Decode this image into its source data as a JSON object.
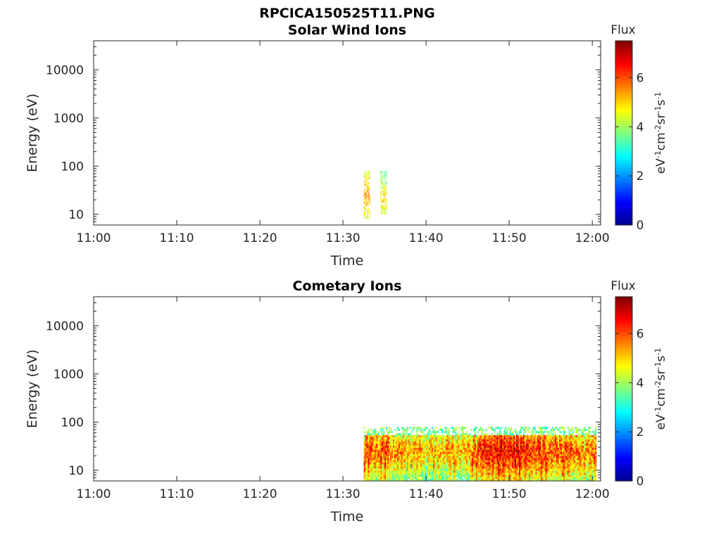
{
  "figure_title": "RPCICA150525T11.PNG",
  "colors": {
    "axis": "#262626",
    "colormap": [
      "#00008f",
      "#0000ff",
      "#0080ff",
      "#00ffff",
      "#80ff80",
      "#ffff00",
      "#ff8000",
      "#ff0000",
      "#800000"
    ]
  },
  "chart_data": [
    {
      "type": "heatmap",
      "title": "Solar Wind Ions",
      "xlabel": "Time",
      "ylabel": "Energy (eV)",
      "yscale": "log",
      "xlim": [
        "11:00",
        "12:01"
      ],
      "ylim": [
        6,
        40000
      ],
      "xticks": [
        "11:00",
        "11:10",
        "11:20",
        "11:30",
        "11:40",
        "11:50",
        "12:00"
      ],
      "yticks": [
        10,
        100,
        1000,
        10000
      ],
      "colorbar": {
        "title": "Flux",
        "label_base": "eV",
        "label_exp1": "-1",
        "label_cm": "cm",
        "label_exp2": "-2",
        "label_sr": "sr",
        "label_exp3": "-1",
        "label_s": "s",
        "label_exp4": "-1",
        "range": [
          0,
          7.5
        ],
        "ticks": [
          0,
          2,
          4,
          6
        ]
      },
      "data": [
        {
          "t0": "11:32.5",
          "t1": "11:33.3",
          "e_min": 8,
          "e_max": 80,
          "flux": 4.5,
          "peak_e": 25,
          "peak_flux": 5.4
        },
        {
          "t0": "11:34.5",
          "t1": "11:35.3",
          "e_min": 10,
          "e_max": 80,
          "flux": 4.2,
          "peak_e": 20,
          "peak_flux": 4.9
        }
      ]
    },
    {
      "type": "heatmap",
      "title": "Cometary Ions",
      "xlabel": "Time",
      "ylabel": "Energy (eV)",
      "yscale": "log",
      "xlim": [
        "11:00",
        "12:01"
      ],
      "ylim": [
        6,
        40000
      ],
      "xticks": [
        "11:00",
        "11:10",
        "11:20",
        "11:30",
        "11:40",
        "11:50",
        "12:00"
      ],
      "yticks": [
        10,
        100,
        1000,
        10000
      ],
      "colorbar": {
        "title": "Flux",
        "label_base": "eV",
        "label_exp1": "-1",
        "label_cm": "cm",
        "label_exp2": "-2",
        "label_sr": "sr",
        "label_exp3": "-1",
        "label_s": "s",
        "label_exp4": "-1",
        "range": [
          0,
          7.5
        ],
        "ticks": [
          0,
          2,
          4,
          6
        ]
      },
      "data": [
        {
          "t": "11:33",
          "flux": 6.3
        },
        {
          "t": "11:34",
          "flux": 5.9
        },
        {
          "t": "11:35",
          "flux": 6.4
        },
        {
          "t": "11:36",
          "flux": 5.6
        },
        {
          "t": "11:37",
          "flux": 5.8
        },
        {
          "t": "11:38",
          "flux": 5.5
        },
        {
          "t": "11:39",
          "flux": 5.7
        },
        {
          "t": "11:40",
          "flux": 5.2
        },
        {
          "t": "11:41",
          "flux": 5.5
        },
        {
          "t": "11:42",
          "flux": 5.3
        },
        {
          "t": "11:43",
          "flux": 5.8
        },
        {
          "t": "11:44",
          "flux": 5.4
        },
        {
          "t": "11:45",
          "flux": 5.6
        },
        {
          "t": "11:46",
          "flux": 6.2
        },
        {
          "t": "11:47",
          "flux": 6.6
        },
        {
          "t": "11:48",
          "flux": 6.8
        },
        {
          "t": "11:49",
          "flux": 6.9
        },
        {
          "t": "11:50",
          "flux": 6.7
        },
        {
          "t": "11:51",
          "flux": 7.0
        },
        {
          "t": "11:52",
          "flux": 6.5
        },
        {
          "t": "11:53",
          "flux": 6.3
        },
        {
          "t": "11:54",
          "flux": 6.6
        },
        {
          "t": "11:55",
          "flux": 6.1
        },
        {
          "t": "11:56",
          "flux": 6.2
        },
        {
          "t": "11:57",
          "flux": 6.4
        },
        {
          "t": "11:58",
          "flux": 5.9
        },
        {
          "t": "11:59",
          "flux": 5.8
        },
        {
          "t": "12:00",
          "flux": 6.0
        }
      ],
      "energy_range": [
        6,
        80
      ]
    }
  ]
}
